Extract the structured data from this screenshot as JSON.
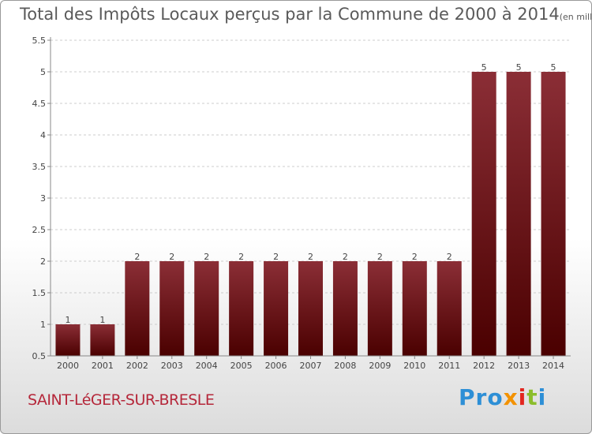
{
  "title": "Total des Impôts Locaux perçus par la Commune de 2000 à 2014",
  "unit": "(en milliers d'€)",
  "commune": "SAINT-LéGER-SUR-BRESLE",
  "logo": {
    "p1": "Pro",
    "p2": "x",
    "p3": "i",
    "p4": "t",
    "p5": "i"
  },
  "colors": {
    "bar_top": "#8b2e36",
    "bar_bottom": "#4a0000",
    "grid": "#cccccc",
    "axis": "#888888"
  },
  "chart_data": {
    "type": "bar",
    "title": "Total des Impôts Locaux perçus par la Commune de 2000 à 2014",
    "categories": [
      "2000",
      "2001",
      "2002",
      "2003",
      "2004",
      "2005",
      "2006",
      "2007",
      "2008",
      "2009",
      "2010",
      "2011",
      "2012",
      "2013",
      "2014"
    ],
    "values": [
      1,
      1,
      2,
      2,
      2,
      2,
      2,
      2,
      2,
      2,
      2,
      2,
      5,
      5,
      5
    ],
    "ylim": [
      0.5,
      5.5
    ],
    "yticks": [
      0.5,
      1,
      1.5,
      2,
      2.5,
      3,
      3.5,
      4,
      4.5,
      5,
      5.5
    ],
    "ytick_labels": [
      "0.5",
      "1",
      "1.5",
      "2",
      "2.5",
      "3",
      "3.5",
      "4",
      "4.5",
      "5",
      "5.5"
    ],
    "grid": true,
    "xlabel": "",
    "ylabel": ""
  }
}
